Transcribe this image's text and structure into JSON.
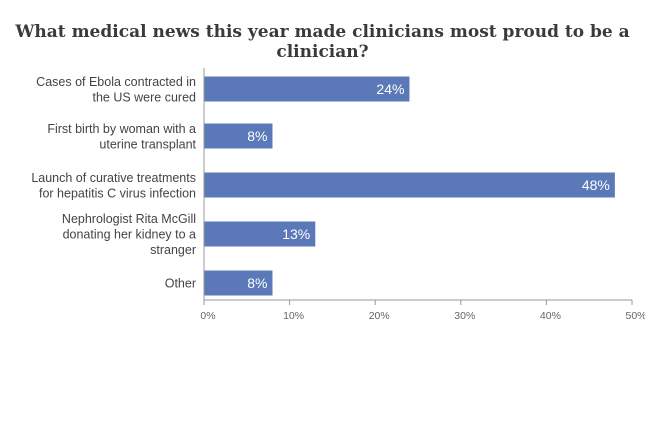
{
  "chart_data": {
    "type": "bar",
    "orientation": "horizontal",
    "title": "What medical news this year made clinicians most proud to be a clinician?",
    "categories": [
      [
        "Cases of Ebola contracted in",
        "the US were cured"
      ],
      [
        "First birth by woman with a",
        "uterine transplant"
      ],
      [
        "Launch of curative treatments",
        "for hepatitis C virus infection"
      ],
      [
        "Nephrologist Rita McGill",
        "donating her kidney to a",
        "stranger"
      ],
      [
        "Other"
      ]
    ],
    "values": [
      24,
      8,
      48,
      13,
      8
    ],
    "value_labels": [
      "24%",
      "8%",
      "48%",
      "13%",
      "8%"
    ],
    "xlim": [
      0,
      50
    ],
    "x_ticks": [
      0,
      10,
      20,
      30,
      40,
      50
    ],
    "x_tick_labels": [
      "0%",
      "10%",
      "20%",
      "30%",
      "40%",
      "50%"
    ],
    "bar_color": "#5b78b8",
    "axis_color": "#999999",
    "grid": false,
    "legend": "none"
  }
}
